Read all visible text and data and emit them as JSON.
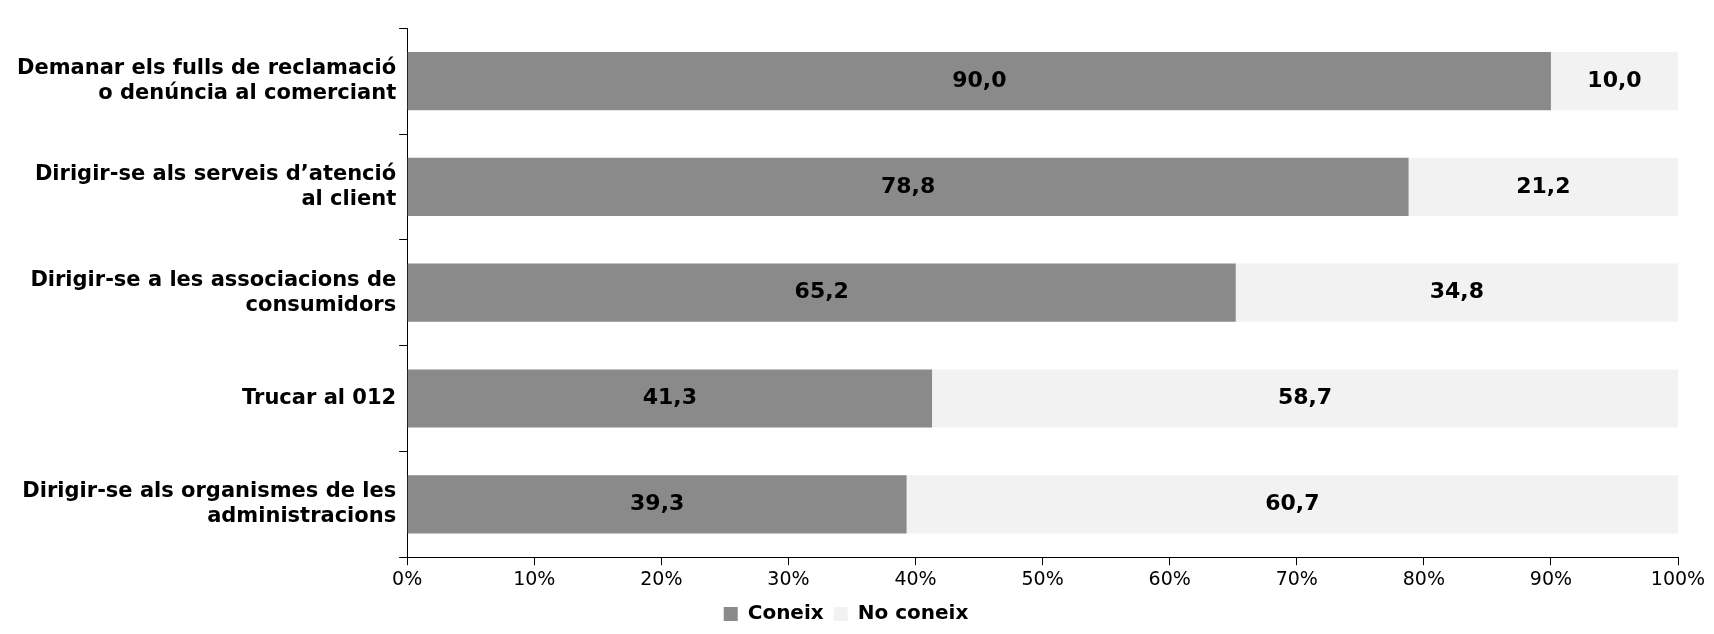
{
  "chart_data": {
    "type": "bar",
    "orientation": "horizontal",
    "stacked": true,
    "categories": [
      "Demanar els fulls de reclamació o denúncia al comerciant",
      "Dirigir-se als serveis d’atenció al client",
      "Dirigir-se a les associacions de consumidors",
      "Trucar al 012",
      "Dirigir-se als organismes de les administracions"
    ],
    "series": [
      {
        "name": "Coneix",
        "color": "#8a8a8a",
        "values": [
          90.0,
          78.8,
          65.2,
          41.3,
          39.3
        ],
        "value_labels": [
          "90,0",
          "78,8",
          "65,2",
          "41,3",
          "39,3"
        ]
      },
      {
        "name": "No coneix",
        "color": "#f2f2f2",
        "values": [
          10.0,
          21.2,
          34.8,
          58.7,
          60.7
        ],
        "value_labels": [
          "10,0",
          "21,2",
          "34,8",
          "58,7",
          "60,7"
        ]
      }
    ],
    "xlim": [
      0,
      100
    ],
    "xticks": [
      {
        "value": 0,
        "label": "0%"
      },
      {
        "value": 10,
        "label": "10%"
      },
      {
        "value": 20,
        "label": "20%"
      },
      {
        "value": 30,
        "label": "30%"
      },
      {
        "value": 40,
        "label": "40%"
      },
      {
        "value": 50,
        "label": "50%"
      },
      {
        "value": 60,
        "label": "60%"
      },
      {
        "value": 70,
        "label": "70%"
      },
      {
        "value": 80,
        "label": "80%"
      },
      {
        "value": 90,
        "label": "90%"
      },
      {
        "value": 100,
        "label": "100%"
      }
    ],
    "grid": false,
    "legend": "bottom"
  }
}
